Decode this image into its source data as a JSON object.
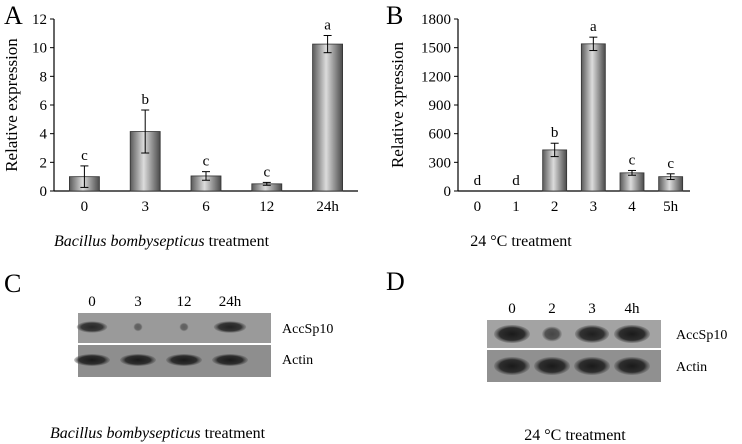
{
  "panels": {
    "A": {
      "letter": "A"
    },
    "B": {
      "letter": "B"
    },
    "C": {
      "letter": "C",
      "lanes": [
        "0",
        "3",
        "12",
        "24h"
      ],
      "rows": [
        "AccSp10",
        "Actin"
      ],
      "caption_italic": "Bacillus bombysepticus",
      "caption_rest": " treatment"
    },
    "D": {
      "letter": "D",
      "lanes": [
        "0",
        "2",
        "3",
        "4h"
      ],
      "rows": [
        "AccSp10",
        "Actin"
      ],
      "caption": "24 °C treatment"
    }
  },
  "chart_data": [
    {
      "type": "bar",
      "panel": "A",
      "categories": [
        "0",
        "3",
        "6",
        "12",
        "24h"
      ],
      "values": [
        1.0,
        4.15,
        1.05,
        0.5,
        10.25
      ],
      "errors": [
        0.75,
        1.5,
        0.3,
        0.1,
        0.6
      ],
      "significance": [
        "c",
        "b",
        "c",
        "c",
        "a"
      ],
      "ylabel": "Relative expression",
      "xlabel_italic": "Bacillus bombysepticus",
      "xlabel_rest": " treatment",
      "ylim": [
        0,
        12
      ],
      "yticks": [
        0,
        2,
        4,
        6,
        8,
        10,
        12
      ],
      "grid": false
    },
    {
      "type": "bar",
      "panel": "B",
      "categories": [
        "0",
        "1",
        "2",
        "3",
        "4",
        "5h"
      ],
      "values": [
        0,
        0,
        430,
        1540,
        190,
        150
      ],
      "errors": [
        0,
        0,
        70,
        70,
        25,
        30
      ],
      "significance": [
        "d",
        "d",
        "b",
        "a",
        "c",
        "c"
      ],
      "ylabel": "Relative xpression",
      "xlabel": "24 °C treatment",
      "ylim": [
        0,
        1800
      ],
      "yticks": [
        0,
        300,
        600,
        900,
        1200,
        1500,
        1800
      ],
      "grid": false
    }
  ]
}
